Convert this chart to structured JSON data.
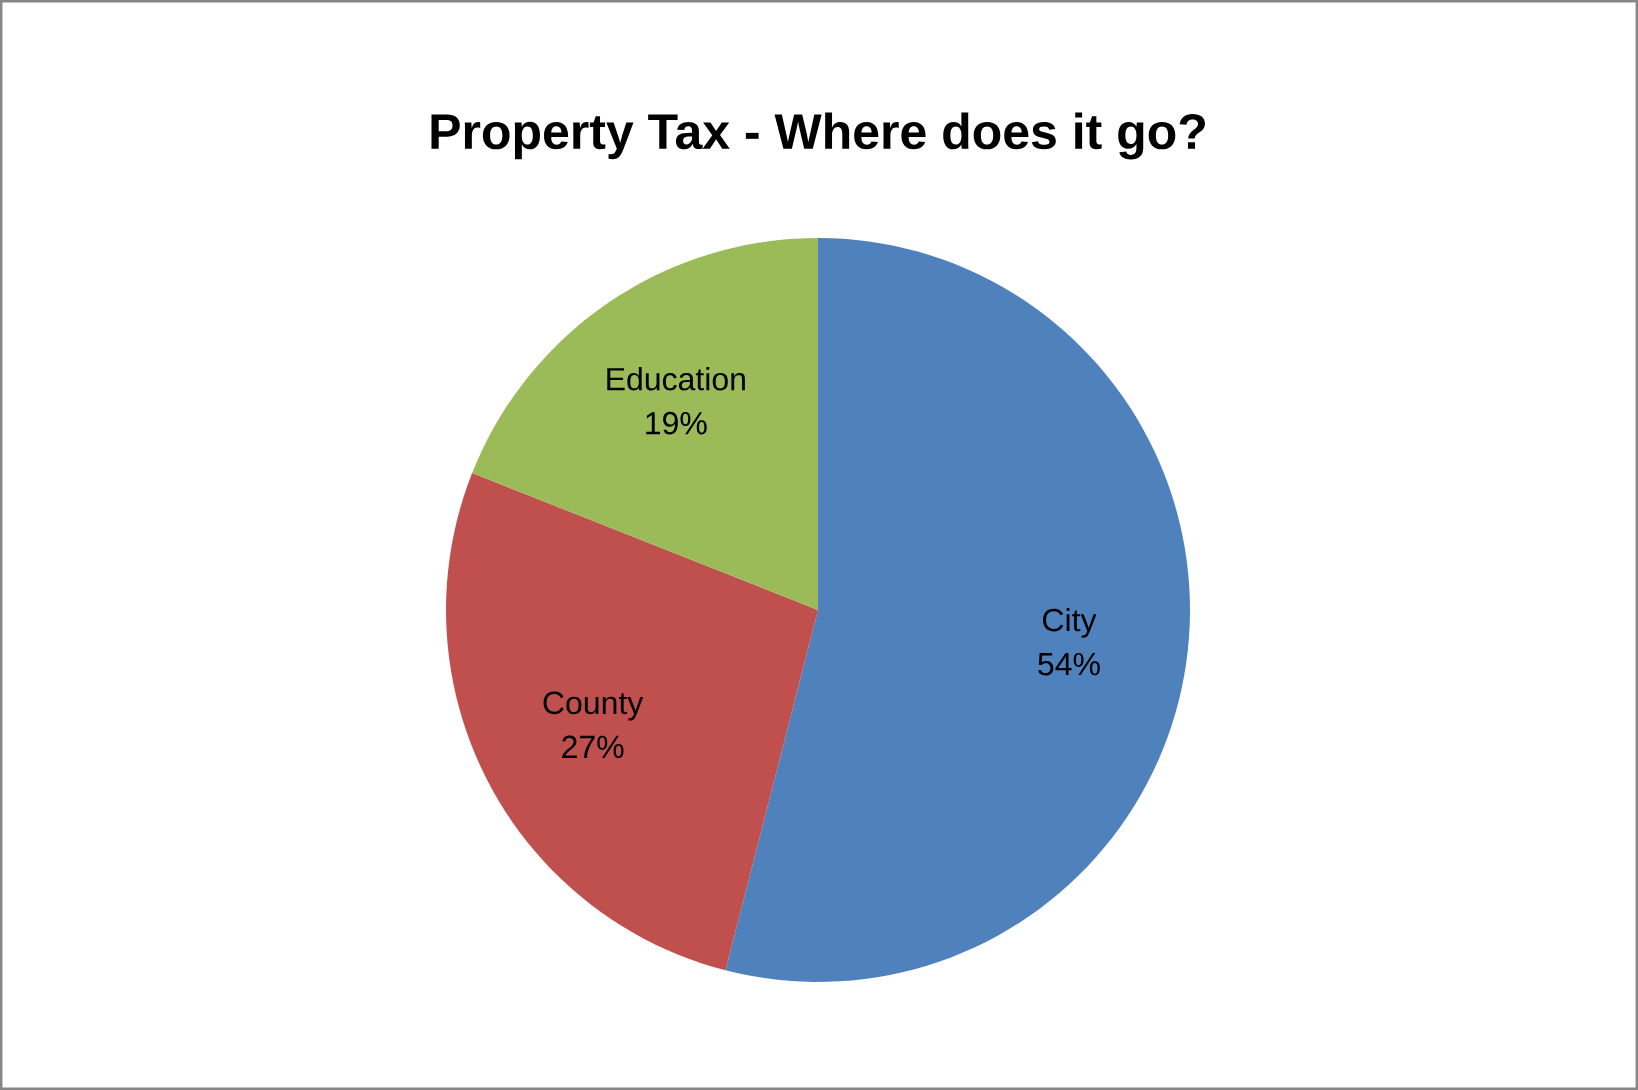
{
  "chart_data": {
    "type": "pie",
    "title": "Property Tax - Where does it go?",
    "categories": [
      "City",
      "County",
      "Education"
    ],
    "values": [
      54,
      27,
      19
    ],
    "colors": [
      "#4f81bd",
      "#c0504d",
      "#9bbb59"
    ],
    "value_labels": [
      "54%",
      "27%",
      "19%"
    ]
  }
}
